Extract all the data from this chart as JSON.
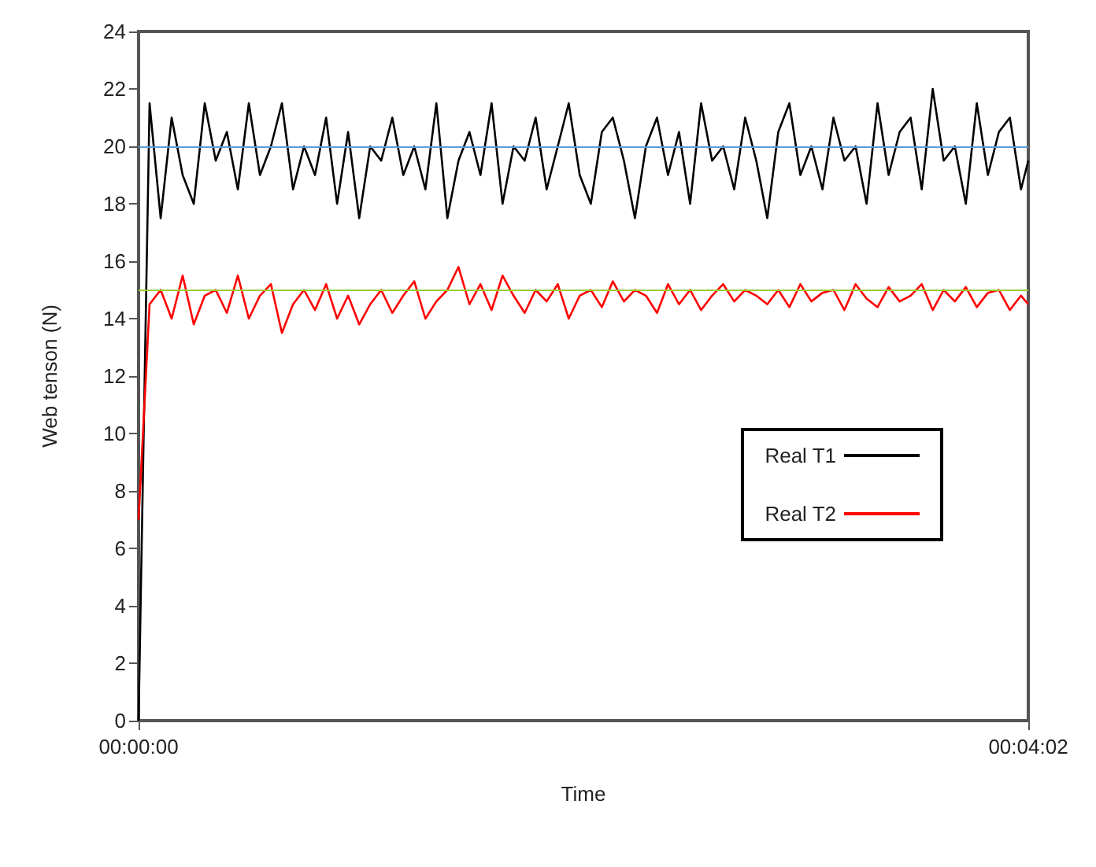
{
  "chart_data": {
    "type": "line",
    "xlabel": "Time",
    "ylabel": "Web tenson (N)",
    "x": [
      0,
      0.00083,
      0.00167,
      0.0025,
      0.00333,
      0.00417,
      0.005,
      0.00583,
      0.00667,
      0.0075,
      0.00833,
      0.00917,
      0.01,
      0.01083,
      0.01167,
      0.0125,
      0.01333,
      0.01417,
      0.015,
      0.01583,
      0.01667,
      0.0175,
      0.01833,
      0.01917,
      0.02,
      0.02083,
      0.02167,
      0.0225,
      0.02333,
      0.02417,
      0.025,
      0.02583,
      0.02667,
      0.0275,
      0.02833,
      0.02917,
      0.03,
      0.03083,
      0.03167,
      0.0325,
      0.03333,
      0.03417,
      0.035,
      0.03583,
      0.03667,
      0.0375,
      0.03833,
      0.03917,
      0.04,
      0.04083,
      0.04167,
      0.0425,
      0.04333,
      0.04417,
      0.045,
      0.04583,
      0.04667,
      0.0475,
      0.04833,
      0.04917,
      0.05,
      0.05083,
      0.05167,
      0.0525,
      0.05333,
      0.05417,
      0.055,
      0.05583,
      0.05667,
      0.0575,
      0.05833,
      0.05917,
      0.06,
      0.06083,
      0.06167,
      0.0625,
      0.06333,
      0.06417,
      0.065,
      0.06583,
      0.06667,
      0.06722
    ],
    "series": [
      {
        "name": "Real T1",
        "color": "#000000",
        "values": [
          0,
          21.5,
          17.5,
          21,
          19,
          18,
          21.5,
          19.5,
          20.5,
          18.5,
          21.5,
          19,
          20,
          21.5,
          18.5,
          20,
          19,
          21,
          18,
          20.5,
          17.5,
          20,
          19.5,
          21,
          19,
          20,
          18.5,
          21.5,
          17.5,
          19.5,
          20.5,
          19,
          21.5,
          18,
          20,
          19.5,
          21,
          18.5,
          20,
          21.5,
          19,
          18,
          20.5,
          21,
          19.5,
          17.5,
          20,
          21,
          19,
          20.5,
          18,
          21.5,
          19.5,
          20,
          18.5,
          21,
          19.5,
          17.5,
          20.5,
          21.5,
          19,
          20,
          18.5,
          21,
          19.5,
          20,
          18,
          21.5,
          19,
          20.5,
          21,
          18.5,
          22,
          19.5,
          20,
          18,
          21.5,
          19,
          20.5,
          21,
          18.5,
          19.5
        ]
      },
      {
        "name": "Real T2",
        "color": "#ff0000",
        "values": [
          7,
          14.5,
          15,
          14,
          15.5,
          13.8,
          14.8,
          15,
          14.2,
          15.5,
          14,
          14.8,
          15.2,
          13.5,
          14.5,
          15,
          14.3,
          15.2,
          14,
          14.8,
          13.8,
          14.5,
          15,
          14.2,
          14.8,
          15.3,
          14,
          14.6,
          15,
          15.8,
          14.5,
          15.2,
          14.3,
          15.5,
          14.8,
          14.2,
          15,
          14.6,
          15.2,
          14,
          14.8,
          15,
          14.4,
          15.3,
          14.6,
          15,
          14.8,
          14.2,
          15.2,
          14.5,
          15,
          14.3,
          14.8,
          15.2,
          14.6,
          15,
          14.8,
          14.5,
          15,
          14.4,
          15.2,
          14.6,
          14.9,
          15,
          14.3,
          15.2,
          14.7,
          14.4,
          15.1,
          14.6,
          14.8,
          15.2,
          14.3,
          15,
          14.6,
          15.1,
          14.4,
          14.9,
          15,
          14.3,
          14.8,
          14.5
        ]
      }
    ],
    "xlim": [
      0,
      0.06722
    ],
    "xticks": [
      {
        "value": 0,
        "label": "00:00:00"
      },
      {
        "value": 0.06722,
        "label": "00:04:02"
      }
    ],
    "ylim": [
      0,
      24
    ],
    "yticks": [
      0,
      2,
      4,
      6,
      8,
      10,
      12,
      14,
      16,
      18,
      20,
      22,
      24
    ],
    "ref_lines": [
      {
        "axis": "y",
        "value": 20,
        "color": "#5b9bd5"
      },
      {
        "axis": "y",
        "value": 15,
        "color": "#9acd32"
      }
    ],
    "legend": "right",
    "grid": false,
    "marker": "none",
    "line_style": "solid"
  }
}
